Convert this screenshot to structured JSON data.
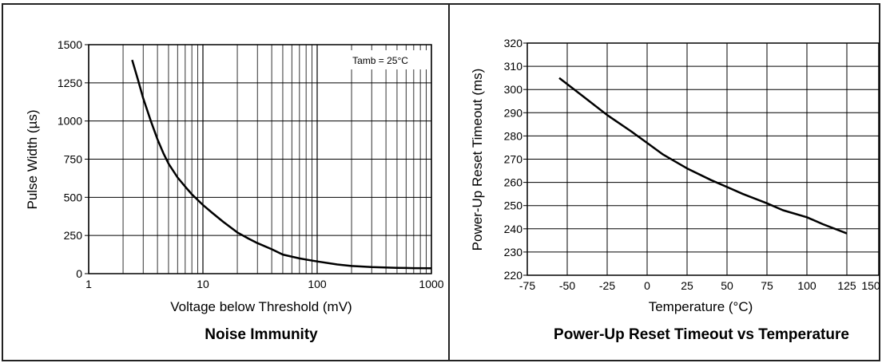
{
  "colors": {
    "line": "#000000",
    "grid": "#000000",
    "background": "#ffffff",
    "border": "#222222"
  },
  "chart_data": [
    {
      "type": "line",
      "caption": "Noise Immunity",
      "xlabel": "Voltage below Threshold (mV)",
      "ylabel": "Pulse Width (µs)",
      "xscale": "log",
      "xlim": [
        1,
        1000
      ],
      "ylim": [
        0,
        1500
      ],
      "xticks": [
        1,
        10,
        100,
        1000
      ],
      "xtick_labels": [
        "1",
        "10",
        "100",
        "1000"
      ],
      "yticks": [
        0,
        250,
        500,
        750,
        1000,
        1250,
        1500
      ],
      "ytick_labels": [
        "0",
        "250",
        "500",
        "750",
        "1000",
        "1250",
        "1500"
      ],
      "grid": true,
      "annotation": "Tamb = 25°C",
      "annotation_position": "top-right",
      "series": [
        {
          "x": [
            2.4,
            2.7,
            3.0,
            3.5,
            4.0,
            4.5,
            5.0,
            6.0,
            7.0,
            8.0,
            10,
            12,
            15,
            20,
            25,
            30,
            40,
            50,
            70,
            100,
            150,
            200,
            300,
            500,
            700,
            1000
          ],
          "y": [
            1400,
            1270,
            1150,
            1000,
            880,
            790,
            720,
            630,
            570,
            520,
            450,
            400,
            340,
            270,
            230,
            200,
            160,
            125,
            100,
            80,
            60,
            50,
            43,
            38,
            36,
            35
          ]
        }
      ]
    },
    {
      "type": "line",
      "caption": "Power-Up Reset Timeout vs Temperature",
      "xlabel": "Temperature (°C)",
      "ylabel": "Power-Up Reset Timeout (ms)",
      "xlim": [
        -75,
        150
      ],
      "ylim": [
        220,
        320
      ],
      "xticks": [
        -75,
        -50,
        -25,
        0,
        25,
        50,
        75,
        100,
        125,
        150
      ],
      "xtick_labels": [
        "-75",
        "-50",
        "-25",
        "0",
        "25",
        "50",
        "75",
        "100",
        "125",
        "150"
      ],
      "yticks": [
        220,
        230,
        240,
        250,
        260,
        270,
        280,
        290,
        300,
        310,
        320
      ],
      "ytick_labels": [
        "220",
        "230",
        "240",
        "250",
        "260",
        "270",
        "280",
        "290",
        "300",
        "310",
        "320"
      ],
      "grid": true,
      "series": [
        {
          "x": [
            -55,
            -40,
            -25,
            -10,
            0,
            10,
            25,
            40,
            50,
            60,
            75,
            85,
            100,
            110,
            125
          ],
          "y": [
            305,
            297,
            289,
            282,
            277,
            272,
            266,
            261,
            258,
            255,
            251,
            248,
            245,
            242,
            238
          ]
        }
      ]
    }
  ]
}
